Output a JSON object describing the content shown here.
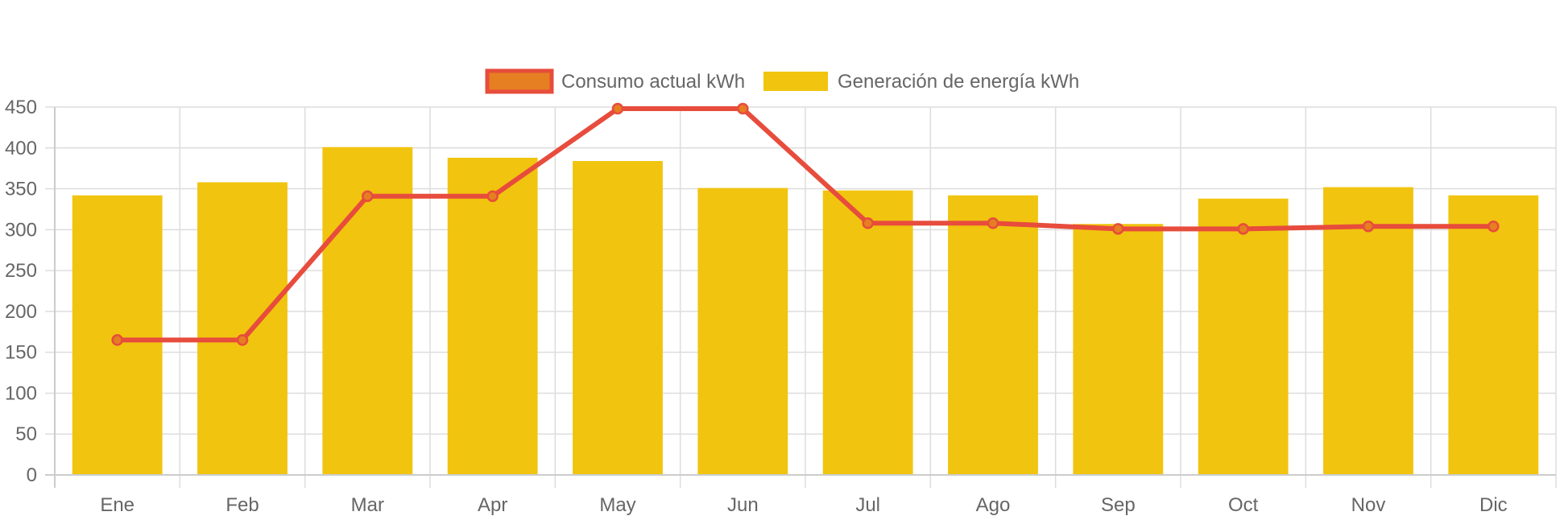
{
  "chart_data": {
    "type": "bar",
    "title": "",
    "xlabel": "",
    "ylabel": "",
    "categories": [
      "Ene",
      "Feb",
      "Mar",
      "Apr",
      "May",
      "Jun",
      "Jul",
      "Ago",
      "Sep",
      "Oct",
      "Nov",
      "Dic"
    ],
    "ylim": [
      0,
      450
    ],
    "yticks": [
      0,
      50,
      100,
      150,
      200,
      250,
      300,
      350,
      400,
      450
    ],
    "grid": true,
    "legend_position": "top",
    "series": [
      {
        "name": "Consumo actual kWh",
        "type": "line",
        "color": "#e74c3c",
        "point_color": "#e67e22",
        "values": [
          165,
          165,
          341,
          341,
          448,
          448,
          308,
          308,
          301,
          301,
          304,
          304
        ]
      },
      {
        "name": "Generación de energía kWh",
        "type": "bar",
        "color": "#f1c40f",
        "values": [
          342,
          358,
          401,
          388,
          384,
          351,
          348,
          342,
          307,
          338,
          352,
          342
        ]
      }
    ]
  }
}
